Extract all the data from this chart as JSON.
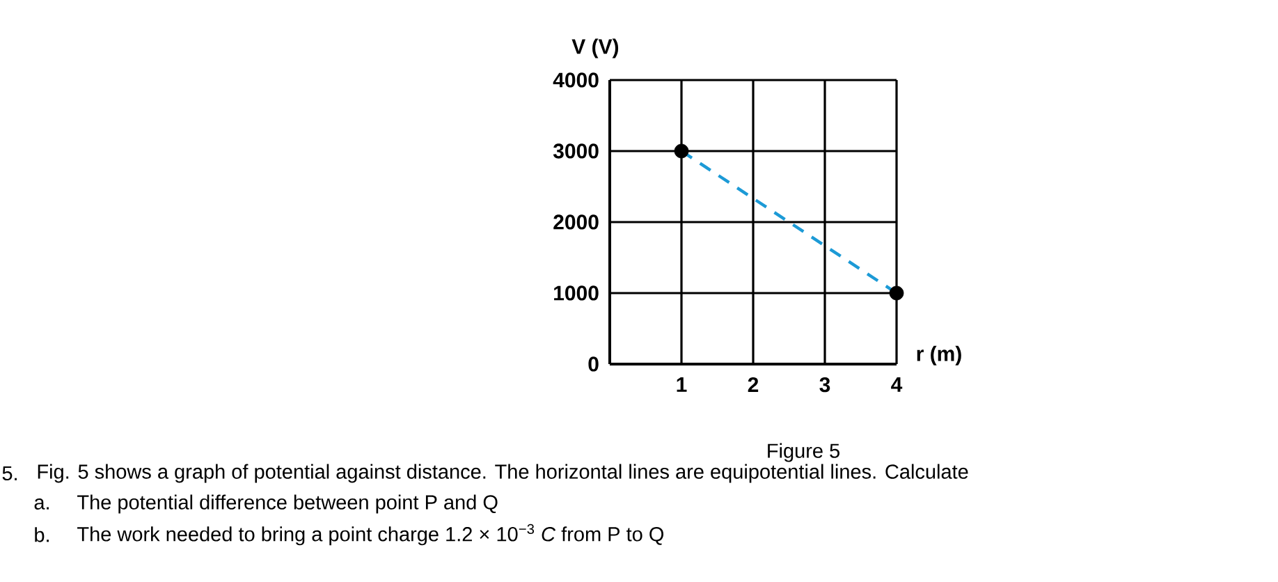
{
  "chart_data": {
    "type": "line",
    "xlabel": "r (m)",
    "ylabel": "V (V)",
    "x": [
      1,
      4
    ],
    "series": [
      {
        "color": "#1c9ad6",
        "line_style": "dashed",
        "marker": "none",
        "values": [
          3000,
          1000
        ]
      },
      {
        "type": "scatter",
        "color": "#000000",
        "marker": "circle",
        "values": [
          3000,
          1000
        ]
      }
    ],
    "xlim": [
      0,
      4
    ],
    "ylim": [
      0,
      4000
    ],
    "xticks": [
      1,
      2,
      3,
      4
    ],
    "yticks": [
      0,
      1000,
      2000,
      3000,
      4000
    ],
    "grid": true,
    "annotations": [
      "Figure 5",
      "5.",
      "Fig. 5 shows a graph of potential against distance. The horizontal lines are equipotential lines. Calculate",
      "a.",
      "The potential difference between point P and Q",
      "b.",
      "The work needed to bring a point charge 1.2 × 10$^{−3}$ *C* from P to Q"
    ]
  }
}
